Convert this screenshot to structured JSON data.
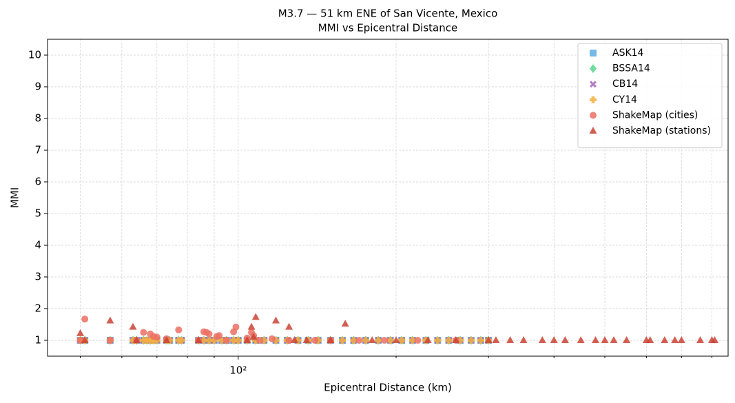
{
  "chart_data": {
    "type": "scatter",
    "title": "M3.7 — 51 km ENE of San Vicente, Mexico",
    "subtitle": "MMI vs Epicentral Distance",
    "x_label": "Epicentral Distance (km)",
    "y_label": "MMI",
    "x_scale": "log",
    "xlim": [
      43.3,
      859
    ],
    "xticks": [
      {
        "value": 100,
        "label": "10²"
      }
    ],
    "xminorticks": [
      50,
      60,
      70,
      80,
      90,
      200,
      300,
      400,
      500,
      600,
      700,
      800
    ],
    "ylim": [
      0.5,
      10.5
    ],
    "yticks": [
      1,
      2,
      3,
      4,
      5,
      6,
      7,
      8,
      9,
      10
    ],
    "grid": true,
    "legend": "upper right",
    "series": [
      {
        "name": "ASK14",
        "color": "#5dade2",
        "marker": "square",
        "x": [
          50,
          51,
          57,
          63,
          64,
          66,
          67,
          68,
          69,
          70,
          73,
          74,
          77,
          78,
          84,
          86,
          88,
          90,
          93,
          95,
          98,
          100,
          104,
          108,
          112,
          118,
          124,
          130,
          136,
          142,
          150,
          158,
          166,
          175,
          185,
          195,
          205,
          215,
          228,
          240,
          252,
          265,
          278,
          290,
          300
        ],
        "values": [
          1,
          1,
          1,
          1,
          1,
          1,
          1,
          1,
          1,
          1,
          1,
          1,
          1,
          1,
          1,
          1,
          1,
          1,
          1,
          1,
          1,
          1,
          1,
          1,
          1,
          1,
          1,
          1,
          1,
          1,
          1,
          1,
          1,
          1,
          1,
          1,
          1,
          1,
          1,
          1,
          1,
          1,
          1,
          1,
          1
        ]
      },
      {
        "name": "BSSA14",
        "color": "#58d68d",
        "marker": "diamond",
        "x": [
          50,
          51,
          57,
          63,
          64,
          66,
          67,
          68,
          69,
          70,
          73,
          74,
          77,
          78,
          84,
          86,
          88,
          90,
          93,
          95,
          98,
          100,
          104,
          108,
          112,
          118,
          124,
          130,
          136,
          142,
          150,
          158,
          166,
          175,
          185,
          195,
          205,
          215,
          228,
          240,
          252,
          265,
          278,
          290,
          300
        ],
        "values": [
          1,
          1,
          1,
          1,
          1,
          1,
          1,
          1,
          1,
          1,
          1,
          1,
          1,
          1,
          1,
          1,
          1,
          1,
          1,
          1,
          1,
          1,
          1,
          1,
          1,
          1,
          1,
          1,
          1,
          1,
          1,
          1,
          1,
          1,
          1,
          1,
          1,
          1,
          1,
          1,
          1,
          1,
          1,
          1,
          1
        ]
      },
      {
        "name": "CB14",
        "color": "#a569bd",
        "marker": "x",
        "x": [
          50,
          51,
          57,
          63,
          64,
          66,
          67,
          68,
          69,
          70,
          73,
          74,
          77,
          78,
          84,
          86,
          88,
          90,
          93,
          95,
          98,
          100,
          104,
          108,
          112,
          118,
          124,
          130,
          136,
          142,
          150,
          158,
          166,
          175,
          185,
          195,
          205,
          215,
          228,
          240,
          252,
          265,
          278,
          290,
          300
        ],
        "values": [
          1,
          1,
          1,
          1,
          1,
          1,
          1,
          1,
          1,
          1,
          1,
          1,
          1,
          1,
          1,
          1,
          1,
          1,
          1,
          1,
          1,
          1,
          1,
          1,
          1,
          1,
          1,
          1,
          1,
          1,
          1,
          1,
          1,
          1,
          1,
          1,
          1,
          1,
          1,
          1,
          1,
          1,
          1,
          1,
          1
        ]
      },
      {
        "name": "CY14",
        "color": "#f5b041",
        "marker": "plus",
        "x": [
          50,
          51,
          57,
          63,
          64,
          66,
          67,
          68,
          69,
          70,
          73,
          74,
          77,
          78,
          84,
          86,
          88,
          90,
          93,
          95,
          98,
          100,
          104,
          108,
          112,
          118,
          124,
          130,
          136,
          142,
          150,
          158,
          166,
          175,
          185,
          195,
          205,
          215,
          228,
          240,
          252,
          265,
          278,
          290,
          300
        ],
        "values": [
          1,
          1,
          1,
          1,
          1,
          1,
          1,
          1,
          1,
          1,
          1,
          1,
          1,
          1,
          1,
          1,
          1,
          1,
          1,
          1,
          1,
          1,
          1,
          1,
          1,
          1,
          1,
          1,
          1,
          1,
          1,
          1,
          1,
          1,
          1,
          1,
          1,
          1,
          1,
          1,
          1,
          1,
          1,
          1,
          1
        ]
      },
      {
        "name": "ShakeMap (cities)",
        "color": "#ec7063",
        "marker": "circle",
        "x": [
          51,
          50,
          57,
          64,
          66,
          68,
          69,
          70,
          73,
          77,
          84,
          86,
          87,
          88,
          91,
          92,
          95,
          98,
          99,
          104,
          106,
          107,
          110,
          116,
          125,
          140,
          150,
          170,
          190,
          220,
          260
        ],
        "values": [
          1.67,
          1,
          1,
          1,
          1.25,
          1.2,
          1.12,
          1.1,
          1.05,
          1.33,
          1,
          1.27,
          1.25,
          1.2,
          1.12,
          1.15,
          1,
          1.27,
          1.42,
          1.07,
          1.25,
          1.15,
          1,
          1.05,
          1,
          1,
          1,
          1,
          1,
          1,
          1
        ]
      },
      {
        "name": "ShakeMap (stations)",
        "color": "#cb4335",
        "marker": "triangle",
        "x": [
          50,
          51,
          57,
          63,
          64,
          73,
          84,
          104,
          106,
          108,
          107,
          118,
          125,
          128,
          135,
          160,
          150,
          180,
          200,
          230,
          260,
          300,
          310,
          330,
          350,
          380,
          400,
          420,
          450,
          480,
          500,
          520,
          550,
          600,
          610,
          650,
          680,
          700,
          760,
          800,
          810
        ],
        "values": [
          1.22,
          1,
          1.62,
          1.42,
          1,
          1,
          1,
          1,
          1.42,
          1.73,
          1.1,
          1.62,
          1.42,
          1,
          1,
          1.52,
          1,
          1,
          1,
          1,
          1,
          1,
          1,
          1,
          1,
          1,
          1,
          1,
          1,
          1,
          1,
          1,
          1,
          1,
          1,
          1,
          1,
          1,
          1,
          1,
          1
        ]
      }
    ]
  }
}
